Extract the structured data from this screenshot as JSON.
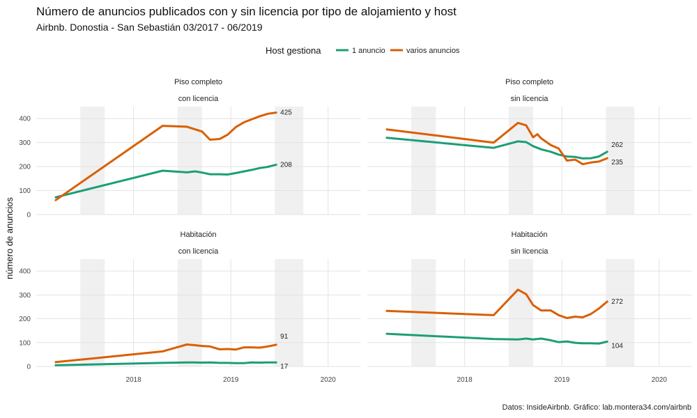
{
  "chart_data": {
    "type": "line",
    "title": "Número de anuncios publicados con y sin licencia por tipo de alojamiento y host",
    "subtitle": "Airbnb. Donostia - San Sebastián 03/2017 - 06/2019",
    "caption": "Datos: InsideAirbnb. Gráfico: lab.montera34.com/airbnb",
    "ylabel": "número de anuncios",
    "legend": {
      "title": "Host gestiona",
      "position": "top",
      "entries": [
        {
          "name": "1 anuncio",
          "color": "#1b9e77"
        },
        {
          "name": "varios anuncios",
          "color": "#d95f02"
        }
      ]
    },
    "xlim": [
      "2017-01-01",
      "2020-05-01"
    ],
    "x_ticks": [
      "2018",
      "2019",
      "2020"
    ],
    "x_tick_dates": [
      "2018-01-01",
      "2019-01-01",
      "2020-01-01"
    ],
    "ylim": [
      0,
      450
    ],
    "y_ticks": [
      0,
      100,
      200,
      300,
      400
    ],
    "grid": true,
    "shaded_periods": [
      [
        "2017-06-15",
        "2017-09-15"
      ],
      [
        "2018-06-15",
        "2018-09-15"
      ],
      [
        "2019-06-15",
        "2019-09-30"
      ]
    ],
    "panels": [
      {
        "strip": [
          "Piso completo",
          "con licencia"
        ],
        "series": [
          {
            "name": "1 anuncio",
            "end_label": "208",
            "x": [
              "2017-03-15",
              "2018-04-20",
              "2018-07-20",
              "2018-08-20",
              "2018-09-15",
              "2018-10-15",
              "2018-11-20",
              "2018-12-20",
              "2019-01-20",
              "2019-02-20",
              "2019-03-20",
              "2019-04-20",
              "2019-05-20",
              "2019-06-20"
            ],
            "y": [
              72,
              183,
              176,
              180,
              175,
              168,
              168,
              167,
              173,
              180,
              186,
              194,
              199,
              208
            ]
          },
          {
            "name": "varios anuncios",
            "end_label": "425",
            "x": [
              "2017-03-15",
              "2018-04-20",
              "2018-07-20",
              "2018-09-15",
              "2018-10-15",
              "2018-11-20",
              "2018-12-20",
              "2019-01-20",
              "2019-02-20",
              "2019-03-20",
              "2019-04-20",
              "2019-05-20",
              "2019-06-20"
            ],
            "y": [
              60,
              370,
              366,
              346,
              312,
              315,
              333,
              365,
              385,
              397,
              410,
              420,
              425
            ]
          }
        ]
      },
      {
        "strip": [
          "Piso completo",
          "sin licencia"
        ],
        "series": [
          {
            "name": "1 anuncio",
            "end_label": "262",
            "x": [
              "2017-03-15",
              "2018-04-20",
              "2018-07-20",
              "2018-08-20",
              "2018-09-15",
              "2018-10-15",
              "2018-11-20",
              "2018-12-20",
              "2019-01-20",
              "2019-02-20",
              "2019-03-20",
              "2019-04-20",
              "2019-05-20",
              "2019-06-20"
            ],
            "y": [
              320,
              278,
              305,
              302,
              285,
              272,
              262,
              250,
              242,
              240,
              234,
              235,
              242,
              262
            ]
          },
          {
            "name": "varios anuncios",
            "end_label": "235",
            "x": [
              "2017-03-15",
              "2018-04-20",
              "2018-07-20",
              "2018-08-20",
              "2018-09-15",
              "2018-10-01",
              "2018-10-15",
              "2018-11-20",
              "2018-12-20",
              "2019-01-20",
              "2019-02-20",
              "2019-03-20",
              "2019-04-20",
              "2019-05-20",
              "2019-06-20"
            ],
            "y": [
              355,
              300,
              382,
              372,
              322,
              335,
              318,
              290,
              275,
              225,
              229,
              210,
              217,
              221,
              235
            ]
          }
        ]
      },
      {
        "strip": [
          "Habitación",
          "con licencia"
        ],
        "series": [
          {
            "name": "1 anuncio",
            "end_label": "17",
            "x": [
              "2017-03-15",
              "2018-04-20",
              "2018-07-20",
              "2018-08-20",
              "2018-09-15",
              "2018-10-15",
              "2018-11-20",
              "2018-12-20",
              "2019-01-20",
              "2019-02-20",
              "2019-03-20",
              "2019-04-20",
              "2019-05-20",
              "2019-06-20"
            ],
            "y": [
              5,
              15,
              17,
              17,
              16,
              17,
              15,
              15,
              14,
              14,
              17,
              16,
              17,
              17
            ]
          },
          {
            "name": "varios anuncios",
            "end_label": "91",
            "x": [
              "2017-03-15",
              "2018-04-20",
              "2018-07-20",
              "2018-08-20",
              "2018-09-15",
              "2018-10-15",
              "2018-11-20",
              "2018-12-20",
              "2019-01-20",
              "2019-02-20",
              "2019-03-20",
              "2019-04-20",
              "2019-05-20",
              "2019-06-20"
            ],
            "y": [
              18,
              63,
              92,
              89,
              86,
              84,
              72,
              73,
              71,
              80,
              80,
              79,
              84,
              91
            ]
          }
        ]
      },
      {
        "strip": [
          "Habitación",
          "sin licencia"
        ],
        "series": [
          {
            "name": "1 anuncio",
            "end_label": "104",
            "x": [
              "2017-03-15",
              "2018-04-20",
              "2018-07-20",
              "2018-08-20",
              "2018-09-15",
              "2018-10-15",
              "2018-11-20",
              "2018-12-20",
              "2019-01-20",
              "2019-02-20",
              "2019-03-20",
              "2019-04-20",
              "2019-05-20",
              "2019-06-20"
            ],
            "y": [
              137,
              115,
              113,
              117,
              113,
              117,
              110,
              102,
              105,
              99,
              97,
              97,
              96,
              104
            ]
          },
          {
            "name": "varios anuncios",
            "end_label": "272",
            "x": [
              "2017-03-15",
              "2018-04-20",
              "2018-07-20",
              "2018-08-20",
              "2018-09-15",
              "2018-10-15",
              "2018-11-20",
              "2018-12-20",
              "2019-01-20",
              "2019-02-20",
              "2019-03-20",
              "2019-04-20",
              "2019-05-20",
              "2019-06-20"
            ],
            "y": [
              233,
              215,
              322,
              303,
              257,
              235,
              235,
              215,
              203,
              209,
              206,
              220,
              243,
              272
            ]
          }
        ]
      }
    ]
  }
}
